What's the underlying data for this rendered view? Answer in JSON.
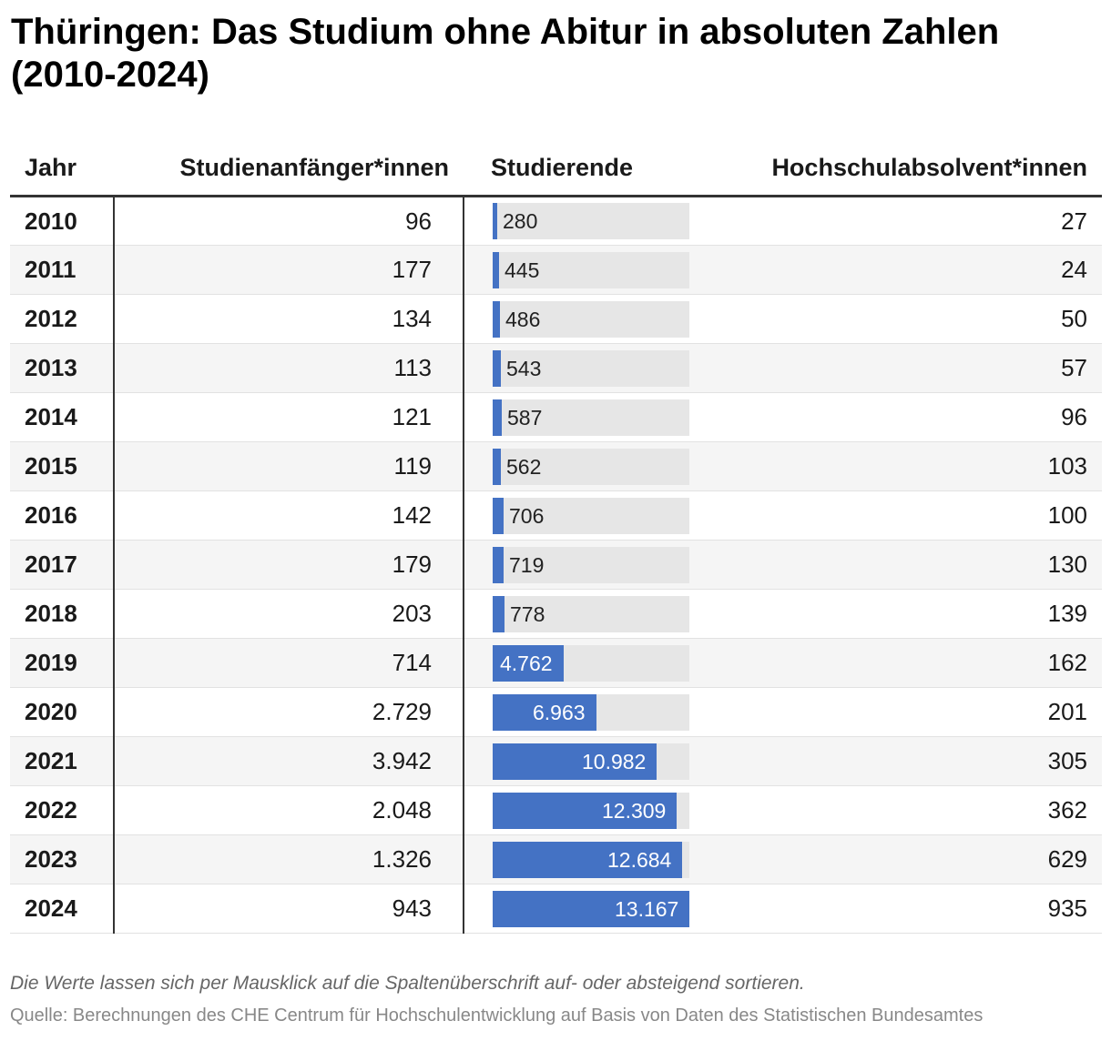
{
  "title": "Thüringen: Das Studium ohne Abitur in absoluten Zahlen (2010-2024)",
  "table": {
    "headers": {
      "year": "Jahr",
      "anfaenger": "Studienanfänger*innen",
      "studierende": "Studierende",
      "absolventen": "Hochschulabsolvent*innen"
    }
  },
  "chart_data": {
    "type": "table",
    "title": "Thüringen: Das Studium ohne Abitur in absoluten Zahlen (2010-2024)",
    "columns": [
      "Jahr",
      "Studienanfänger*innen",
      "Studierende",
      "Hochschulabsolvent*innen"
    ],
    "bar_column": "Studierende",
    "bar_max": 13167,
    "bar_color": "#4472c4",
    "track_color": "#e6e6e6",
    "rows": [
      {
        "year": "2010",
        "anfaenger": "96",
        "studierende": "280",
        "studierende_value": 280,
        "absolventen": "27"
      },
      {
        "year": "2011",
        "anfaenger": "177",
        "studierende": "445",
        "studierende_value": 445,
        "absolventen": "24"
      },
      {
        "year": "2012",
        "anfaenger": "134",
        "studierende": "486",
        "studierende_value": 486,
        "absolventen": "50"
      },
      {
        "year": "2013",
        "anfaenger": "113",
        "studierende": "543",
        "studierende_value": 543,
        "absolventen": "57"
      },
      {
        "year": "2014",
        "anfaenger": "121",
        "studierende": "587",
        "studierende_value": 587,
        "absolventen": "96"
      },
      {
        "year": "2015",
        "anfaenger": "119",
        "studierende": "562",
        "studierende_value": 562,
        "absolventen": "103"
      },
      {
        "year": "2016",
        "anfaenger": "142",
        "studierende": "706",
        "studierende_value": 706,
        "absolventen": "100"
      },
      {
        "year": "2017",
        "anfaenger": "179",
        "studierende": "719",
        "studierende_value": 719,
        "absolventen": "130"
      },
      {
        "year": "2018",
        "anfaenger": "203",
        "studierende": "778",
        "studierende_value": 778,
        "absolventen": "139"
      },
      {
        "year": "2019",
        "anfaenger": "714",
        "studierende": "4.762",
        "studierende_value": 4762,
        "absolventen": "162"
      },
      {
        "year": "2020",
        "anfaenger": "2.729",
        "studierende": "6.963",
        "studierende_value": 6963,
        "absolventen": "201"
      },
      {
        "year": "2021",
        "anfaenger": "3.942",
        "studierende": "10.982",
        "studierende_value": 10982,
        "absolventen": "305"
      },
      {
        "year": "2022",
        "anfaenger": "2.048",
        "studierende": "12.309",
        "studierende_value": 12309,
        "absolventen": "362"
      },
      {
        "year": "2023",
        "anfaenger": "1.326",
        "studierende": "12.684",
        "studierende_value": 12684,
        "absolventen": "629"
      },
      {
        "year": "2024",
        "anfaenger": "943",
        "studierende": "13.167",
        "studierende_value": 13167,
        "absolventen": "935"
      }
    ]
  },
  "footer": {
    "note": "Die Werte lassen sich per Mausklick auf die Spaltenüberschrift auf- oder absteigend sortieren.",
    "source": "Quelle: Berechnungen des CHE Centrum für Hochschulentwicklung auf Basis von Daten des Statistischen Bundesamtes"
  }
}
